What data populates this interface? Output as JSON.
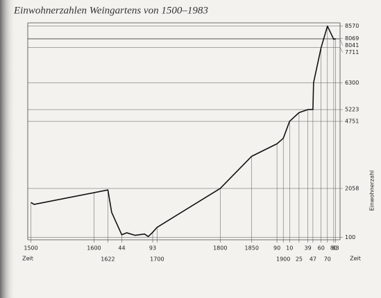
{
  "chart_data": {
    "type": "line",
    "title": "Einwohnerzahlen Weingartens von 1500–1983",
    "x_label": "Zeit",
    "y_label": "Einwohnerzahl",
    "x": [
      1500,
      1505,
      1622,
      1628,
      1644,
      1652,
      1665,
      1680,
      1686,
      1693,
      1700,
      1800,
      1850,
      1890,
      1900,
      1910,
      1925,
      1939,
      1947,
      1948,
      1960,
      1970,
      1980,
      1983
    ],
    "series": [
      {
        "name": "Einwohnerzahl",
        "color": "#111111",
        "values": [
          1500,
          1420,
          2000,
          1100,
          200,
          280,
          180,
          230,
          130,
          300,
          500,
          2058,
          3350,
          3850,
          4070,
          4751,
          5100,
          5223,
          5223,
          6300,
          7711,
          8570,
          8041,
          8069
        ]
      }
    ],
    "xlim": [
      1495,
      1990
    ],
    "ylim": [
      0,
      8700
    ],
    "xticks": [
      1500,
      1600,
      1622,
      {
        "value": 1644,
        "label": "44"
      },
      {
        "value": 1693,
        "label": "93"
      },
      1700,
      1800,
      1850,
      {
        "value": 1890,
        "label": "90"
      },
      1900,
      {
        "value": 1910,
        "label": "10"
      },
      {
        "value": 1925,
        "label": "25"
      },
      {
        "value": 1939,
        "label": "39"
      },
      {
        "value": 1947,
        "label": "47"
      },
      {
        "value": 1960,
        "label": "60"
      },
      {
        "value": 1970,
        "label": "70"
      },
      {
        "value": 1980,
        "label": "80"
      },
      {
        "value": 1983,
        "label": "83"
      }
    ],
    "yticks": [
      100,
      2058,
      4751,
      5223,
      6300,
      7711,
      8041,
      8069,
      8570
    ],
    "grid": true
  }
}
